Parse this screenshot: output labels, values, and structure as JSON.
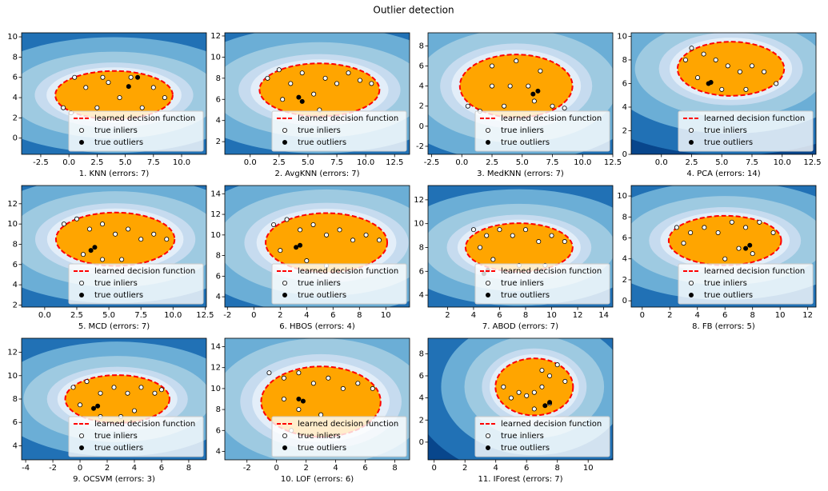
{
  "title": "Outlier detection",
  "chart_data": [
    {
      "type": "scatter",
      "xlabel": "1. KNN (errors: 7)",
      "xlim": [
        -4.2,
        12.2
      ],
      "ylim": [
        -1.6,
        10.4
      ],
      "xticks": [
        -2.5,
        {
          "value": 0,
          "label": "0.0"
        },
        2.5,
        {
          "value": 5,
          "label": "5.0"
        },
        7.5,
        {
          "value": 10,
          "label": "10.0"
        }
      ],
      "yticks": [
        0,
        2,
        4,
        6,
        8,
        10
      ],
      "contour_label": "learned decision function",
      "contour_color": "#ff0000",
      "series": [
        {
          "name": "true inliers",
          "color": "#ffffff",
          "x": [
            -0.5,
            0.5,
            1.5,
            2.5,
            3.5,
            4.5,
            5.5,
            6.5,
            7.5,
            8.5,
            0.2,
            3
          ],
          "y": [
            3,
            6,
            5,
            3,
            5.5,
            4,
            6,
            3,
            5,
            4,
            2.5,
            6
          ]
        },
        {
          "name": "true outliers",
          "color": "#000000",
          "x": [
            5.3,
            6.1
          ],
          "y": [
            5.1,
            6
          ]
        }
      ]
    },
    {
      "type": "scatter",
      "xlabel": "2. AvgKNN (errors: 7)",
      "xlim": [
        -2.2,
        13.8
      ],
      "ylim": [
        0.8,
        12.3
      ],
      "xticks": [
        {
          "value": 0,
          "label": "0.0"
        },
        2.5,
        {
          "value": 5,
          "label": "5.0"
        },
        7.5,
        {
          "value": 10,
          "label": "10.0"
        },
        12.5
      ],
      "yticks": [
        2,
        4,
        6,
        8,
        10,
        12
      ],
      "contour_label": "learned decision function",
      "contour_color": "#ff0000",
      "series": [
        {
          "name": "true inliers",
          "color": "#ffffff",
          "x": [
            1.5,
            2.5,
            3.5,
            4.5,
            5.5,
            6.5,
            7.5,
            8.5,
            9.5,
            10.5,
            2.8,
            6
          ],
          "y": [
            8,
            8.8,
            7.5,
            8.5,
            6.5,
            8,
            7.5,
            8.5,
            7.8,
            7.5,
            6,
            5
          ]
        },
        {
          "name": "true outliers",
          "color": "#000000",
          "x": [
            4.2,
            4.5
          ],
          "y": [
            6.2,
            5.8
          ]
        }
      ]
    },
    {
      "type": "scatter",
      "xlabel": "3. MedKNN (errors: 7)",
      "xlim": [
        -2.8,
        12.5
      ],
      "ylim": [
        -2.8,
        9.3
      ],
      "xticks": [
        -2.5,
        {
          "value": 0,
          "label": "0.0"
        },
        2.5,
        {
          "value": 5,
          "label": "5.0"
        },
        7.5,
        {
          "value": 10,
          "label": "10.0"
        },
        12.5
      ],
      "yticks": [
        -2,
        0,
        2,
        4,
        6,
        8
      ],
      "contour_label": "learned decision function",
      "contour_color": "#ff0000",
      "series": [
        {
          "name": "true inliers",
          "color": "#ffffff",
          "x": [
            0.5,
            1.5,
            2.5,
            3.5,
            4.5,
            5.5,
            6.5,
            7.5,
            8.5,
            4,
            6,
            2.5
          ],
          "y": [
            2,
            1.5,
            6,
            2,
            6.5,
            4,
            5.5,
            2,
            1.8,
            4,
            2.5,
            4
          ]
        },
        {
          "name": "true outliers",
          "color": "#000000",
          "x": [
            5.9,
            6.3
          ],
          "y": [
            3.2,
            3.5
          ]
        }
      ]
    },
    {
      "type": "scatter",
      "xlabel": "4. PCA (errors: 14)",
      "xlim": [
        -2.5,
        12.8
      ],
      "ylim": [
        0,
        10.3
      ],
      "xticks": [
        {
          "value": 0,
          "label": "0.0"
        },
        2.5,
        {
          "value": 5,
          "label": "5.0"
        },
        7.5,
        {
          "value": 10,
          "label": "10.0"
        },
        12.5
      ],
      "yticks": [
        0,
        2,
        4,
        6,
        8,
        10
      ],
      "contour_label": "learned decision function",
      "contour_color": "#ff0000",
      "series": [
        {
          "name": "true inliers",
          "color": "#ffffff",
          "x": [
            2,
            2.5,
            3.5,
            4.5,
            5.5,
            6.5,
            7.5,
            8.5,
            9.5,
            3,
            5,
            7
          ],
          "y": [
            8,
            9,
            8.5,
            8,
            7.5,
            7,
            7.5,
            7,
            6,
            6.5,
            5.5,
            5.5
          ]
        },
        {
          "name": "true outliers",
          "color": "#000000",
          "x": [
            3.9,
            4.1
          ],
          "y": [
            6,
            6.1
          ]
        }
      ]
    },
    {
      "type": "scatter",
      "xlabel": "5. MCD (errors: 7)",
      "xlim": [
        -1.8,
        12.6
      ],
      "ylim": [
        1.8,
        13.8
      ],
      "xticks": [
        {
          "value": 0,
          "label": "0.0"
        },
        2.5,
        {
          "value": 5,
          "label": "5.0"
        },
        7.5,
        {
          "value": 10,
          "label": "10.0"
        },
        12.5
      ],
      "yticks": [
        2,
        4,
        6,
        8,
        10,
        12
      ],
      "contour_label": "learned decision function",
      "contour_color": "#ff0000",
      "series": [
        {
          "name": "true inliers",
          "color": "#ffffff",
          "x": [
            1.5,
            2.5,
            3.5,
            4.5,
            5.5,
            6.5,
            7.5,
            8.5,
            9.5,
            3,
            4.5,
            6
          ],
          "y": [
            10,
            10.5,
            9.5,
            10,
            9,
            9.5,
            8.5,
            9,
            8.5,
            7,
            6.5,
            6.5
          ]
        },
        {
          "name": "true outliers",
          "color": "#000000",
          "x": [
            3.6,
            3.9
          ],
          "y": [
            7.4,
            7.7
          ]
        }
      ]
    },
    {
      "type": "scatter",
      "xlabel": "6. HBOS (errors: 4)",
      "xlim": [
        -2.2,
        11.8
      ],
      "ylim": [
        3,
        14.8
      ],
      "xticks": [
        -2,
        0,
        2,
        4,
        6,
        8,
        10
      ],
      "yticks": [
        4,
        6,
        8,
        10,
        12,
        14
      ],
      "contour_label": "learned decision function",
      "contour_color": "#ff0000",
      "series": [
        {
          "name": "true inliers",
          "color": "#ffffff",
          "x": [
            1.5,
            2.5,
            3.5,
            4.5,
            5.5,
            6.5,
            7.5,
            8.5,
            9.5,
            2,
            4,
            5.5
          ],
          "y": [
            11,
            11.5,
            10.5,
            11,
            10,
            10.5,
            9.5,
            10,
            9.5,
            8.5,
            7.5,
            7
          ]
        },
        {
          "name": "true outliers",
          "color": "#000000",
          "x": [
            3.2,
            3.5
          ],
          "y": [
            8.8,
            9
          ]
        }
      ]
    },
    {
      "type": "scatter",
      "xlabel": "7. ABOD (errors: 7)",
      "xlim": [
        0.5,
        14.7
      ],
      "ylim": [
        3,
        13.2
      ],
      "xticks": [
        2,
        4,
        6,
        8,
        10,
        12,
        14
      ],
      "yticks": [
        4,
        6,
        8,
        10,
        12
      ],
      "contour_label": "learned decision function",
      "contour_color": "#ff0000",
      "series": [
        {
          "name": "true inliers",
          "color": "#ffffff",
          "x": [
            4,
            5,
            6,
            7,
            8,
            9,
            10,
            11,
            5.5,
            7.5,
            9.5,
            4.5
          ],
          "y": [
            9.5,
            9,
            9.5,
            9,
            9.5,
            8.5,
            9,
            8.5,
            7,
            6.5,
            6.5,
            8
          ]
        },
        {
          "name": "true outliers",
          "color": "#000000",
          "x": [
            4.8,
            5.1
          ],
          "y": [
            5.8,
            6.1
          ]
        }
      ]
    },
    {
      "type": "scatter",
      "xlabel": "8. FB (errors: 5)",
      "xlim": [
        -0.8,
        12.6
      ],
      "ylim": [
        -0.6,
        11
      ],
      "xticks": [
        0,
        2,
        4,
        6,
        8,
        10,
        12
      ],
      "yticks": [
        0,
        2,
        4,
        6,
        8,
        10
      ],
      "contour_label": "learned decision function",
      "contour_color": "#ff0000",
      "series": [
        {
          "name": "true inliers",
          "color": "#ffffff",
          "x": [
            2.5,
            3.5,
            4.5,
            5.5,
            6.5,
            7.5,
            8.5,
            9.5,
            3,
            6,
            7,
            8
          ],
          "y": [
            7,
            6.5,
            7,
            6.5,
            7.5,
            7,
            7.5,
            6.5,
            5.5,
            4,
            5,
            4.5
          ]
        },
        {
          "name": "true outliers",
          "color": "#000000",
          "x": [
            7.5,
            7.8
          ],
          "y": [
            5,
            5.3
          ]
        }
      ]
    },
    {
      "type": "scatter",
      "xlabel": "9. OCSVM (errors: 3)",
      "xlim": [
        -4.3,
        9.3
      ],
      "ylim": [
        2.8,
        13.2
      ],
      "xticks": [
        -4,
        -2,
        0,
        2,
        4,
        6,
        8
      ],
      "yticks": [
        4,
        6,
        8,
        10,
        12
      ],
      "contour_label": "learned decision function",
      "contour_color": "#ff0000",
      "series": [
        {
          "name": "true inliers",
          "color": "#ffffff",
          "x": [
            -0.5,
            0.5,
            1.5,
            2.5,
            3.5,
            4.5,
            5.5,
            6,
            0,
            1.5,
            3,
            4
          ],
          "y": [
            9,
            9.5,
            8.5,
            9,
            8.5,
            9,
            8.5,
            8.8,
            7.5,
            6.5,
            6.5,
            7
          ]
        },
        {
          "name": "true outliers",
          "color": "#000000",
          "x": [
            1,
            1.3
          ],
          "y": [
            7.2,
            7.4
          ]
        }
      ]
    },
    {
      "type": "scatter",
      "xlabel": "10. LOF (errors: 6)",
      "xlim": [
        -3.5,
        9
      ],
      "ylim": [
        3.2,
        14.8
      ],
      "xticks": [
        -2,
        0,
        2,
        4,
        6,
        8
      ],
      "yticks": [
        4,
        6,
        8,
        10,
        12,
        14
      ],
      "contour_label": "learned decision function",
      "contour_color": "#ff0000",
      "series": [
        {
          "name": "true inliers",
          "color": "#ffffff",
          "x": [
            -0.5,
            0.5,
            1.5,
            2.5,
            3.5,
            4.5,
            5.5,
            6.5,
            0.5,
            1.5,
            3,
            1
          ],
          "y": [
            11.5,
            11,
            11.5,
            10.5,
            11,
            10,
            10.5,
            10,
            9,
            8,
            7.5,
            6
          ]
        },
        {
          "name": "true outliers",
          "color": "#000000",
          "x": [
            1.5,
            1.8
          ],
          "y": [
            9,
            8.8
          ]
        }
      ]
    },
    {
      "type": "scatter",
      "xlabel": "11. IForest (errors: 7)",
      "xlim": [
        -0.4,
        11.6
      ],
      "ylim": [
        -1.6,
        9.4
      ],
      "xticks": [
        0,
        2,
        4,
        6,
        8,
        10
      ],
      "yticks": [
        0,
        2,
        4,
        6,
        8
      ],
      "contour_label": "learned decision function",
      "contour_color": "#ff0000",
      "series": [
        {
          "name": "true inliers",
          "color": "#ffffff",
          "x": [
            4.5,
            5.5,
            6.5,
            7,
            7.5,
            8,
            5,
            6,
            7.5,
            8.5,
            6.5,
            7
          ],
          "y": [
            5,
            4.5,
            4.5,
            6.5,
            6,
            7,
            4,
            4.2,
            3.5,
            5.5,
            3,
            5
          ]
        },
        {
          "name": "true outliers",
          "color": "#000000",
          "x": [
            7.2,
            7.5
          ],
          "y": [
            3.3,
            3.6
          ]
        }
      ]
    }
  ]
}
